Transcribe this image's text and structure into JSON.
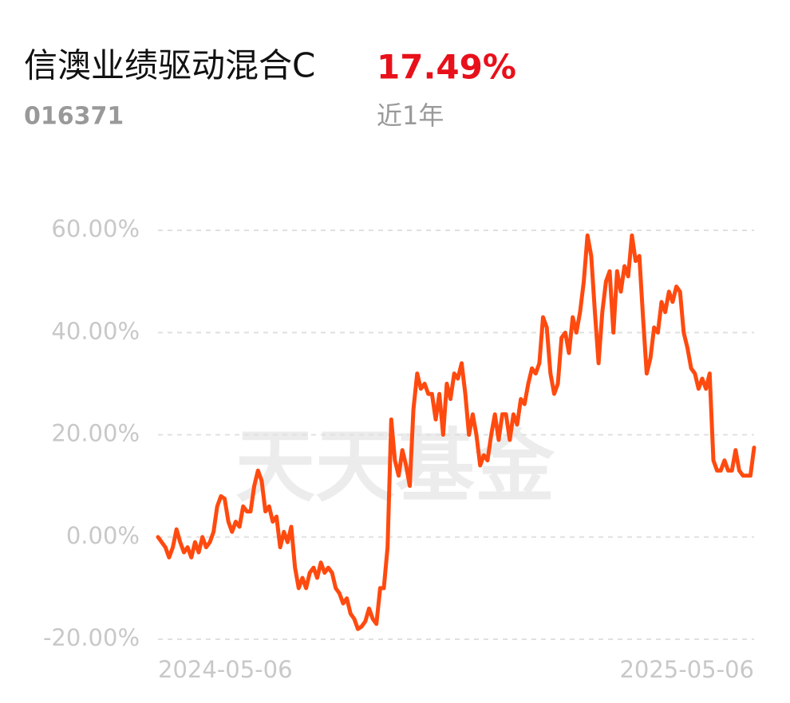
{
  "header": {
    "title": "信澳业绩驱动混合C",
    "return": "17.49%",
    "code": "016371",
    "period": "近1年"
  },
  "chart_data": {
    "type": "line",
    "watermark": "天天基金",
    "categories": [
      "2024-05-06",
      null,
      null,
      null,
      null,
      null,
      null,
      null,
      null,
      null,
      null,
      null,
      null,
      null,
      null,
      null,
      null,
      null,
      null,
      null,
      null,
      null,
      null,
      null,
      null,
      null,
      null,
      null,
      null,
      null,
      null,
      null,
      null,
      null,
      null,
      null,
      null,
      null,
      null,
      null,
      null,
      null,
      null,
      null,
      null,
      null,
      null,
      null,
      null,
      null,
      null,
      null,
      null,
      null,
      null,
      null,
      null,
      null,
      null,
      null,
      null,
      null,
      null,
      null,
      null,
      null,
      null,
      null,
      null,
      null,
      null,
      null,
      null,
      null,
      null,
      null,
      null,
      null,
      null,
      null,
      null,
      null,
      null,
      null,
      null,
      null,
      null,
      null,
      null,
      null,
      null,
      null,
      null,
      null,
      null,
      null,
      null,
      null,
      null,
      null,
      null,
      null,
      null,
      null,
      null,
      null,
      null,
      null,
      null,
      null,
      null,
      null,
      null,
      null,
      null,
      null,
      null,
      null,
      null,
      null,
      null,
      null,
      null,
      null,
      null,
      null,
      null,
      null,
      null,
      null,
      null,
      null,
      null,
      null,
      null,
      null,
      null,
      null,
      null,
      null,
      null,
      null,
      null,
      null,
      null,
      null,
      null,
      null,
      null,
      null,
      null,
      null,
      null,
      null,
      null,
      null,
      null,
      null,
      null,
      null,
      null,
      "2025-05-06"
    ],
    "series": [
      {
        "color": "#ff4a0f",
        "values": [
          0,
          -1,
          -2,
          -4,
          -2,
          1.5,
          -1,
          -3,
          -2,
          -4,
          -1,
          -3,
          0,
          -2,
          -1,
          1,
          6,
          8,
          7.5,
          3,
          1,
          3,
          2,
          6,
          5,
          5,
          10,
          13,
          11,
          5,
          6,
          3,
          4,
          -2,
          1,
          -1,
          2,
          -6,
          -10,
          -8,
          -10,
          -7,
          -6,
          -8,
          -5,
          -7,
          -6,
          -7,
          -10,
          -11,
          -13,
          -12,
          -15,
          -16,
          -18,
          -17.5,
          -16.5,
          -14,
          -16,
          -17,
          -10,
          -10,
          -2,
          23,
          15,
          12,
          17,
          14,
          10,
          25,
          32,
          29,
          30,
          28,
          28,
          23,
          28,
          20,
          30,
          27,
          32,
          31,
          34,
          28,
          20,
          24,
          20,
          14,
          16,
          15,
          20,
          24,
          19,
          24,
          24,
          19,
          24,
          22,
          27,
          26,
          30,
          33,
          32,
          34,
          43,
          41,
          32,
          28,
          30,
          39,
          40,
          36,
          43,
          40,
          44,
          50,
          59,
          55,
          44,
          34,
          44,
          50,
          52,
          40,
          52,
          48,
          53,
          51,
          59,
          54,
          55,
          43,
          32,
          35,
          41,
          40,
          46,
          44,
          48,
          46,
          49,
          48,
          40,
          37,
          33,
          32,
          29,
          31,
          29,
          32,
          15,
          13,
          13,
          15,
          13,
          13,
          17,
          13,
          12,
          12,
          12,
          17.49
        ]
      }
    ],
    "ylim": [
      -20,
      60
    ],
    "yticks": [
      {
        "value": -20,
        "label": "-20.00%"
      },
      {
        "value": 0,
        "label": "0.00%"
      },
      {
        "value": 20,
        "label": "20.00%"
      },
      {
        "value": 40,
        "label": "40.00%"
      },
      {
        "value": 60,
        "label": "60.00%"
      }
    ],
    "grid": true
  }
}
